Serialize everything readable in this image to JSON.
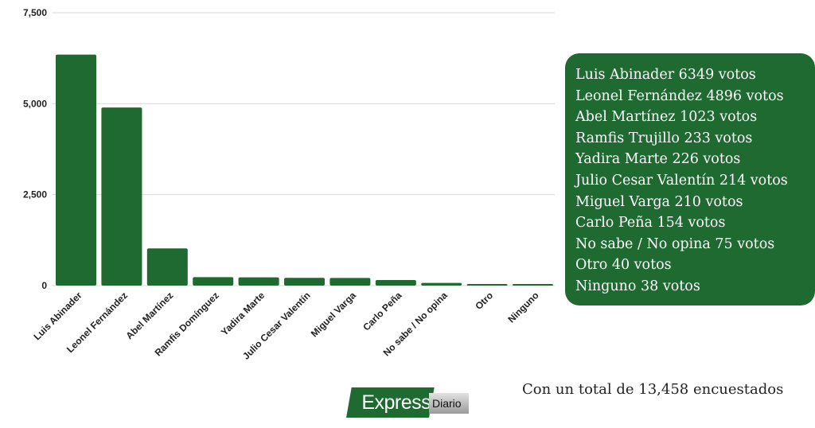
{
  "chart_data": {
    "type": "bar",
    "categories": [
      "Luis Abinader",
      "Leonel Fernández",
      "Abel Martínez",
      "Ramfis Domínguez",
      "Yadira Marte",
      "Julio Cesar Valentín",
      "Miguel Varga",
      "Carlo Peña",
      "No sabe / No opina",
      "Otro",
      "Ninguno"
    ],
    "values": [
      6349,
      4896,
      1023,
      233,
      226,
      214,
      210,
      154,
      75,
      40,
      38
    ],
    "yticks": [
      0,
      2500,
      5000,
      7500
    ],
    "ytick_labels": [
      "0",
      "2,500",
      "5,000",
      "7,500"
    ],
    "ylim": [
      0,
      7500
    ],
    "grid": true,
    "bar_color": "#1e6a31",
    "title": "",
    "xlabel": "",
    "ylabel": ""
  },
  "legend_lines": [
    "Luis Abinader 6349 votos",
    "Leonel Fernández 4896 votos",
    "Abel Martínez 1023 votos",
    "Ramfis Trujillo 233 votos",
    "Yadira Marte 226 votos",
    "Julio Cesar Valentín 214 votos",
    "Miguel Varga 210 votos",
    "Carlo Peña 154 votos",
    "No sabe / No opina 75 votos",
    "Otro 40 votos",
    "Ninguno 38 votos"
  ],
  "legend_bg": "#1e6a31",
  "total_text": "Con un total de 13,458 encuestados",
  "logo": {
    "express": "Express",
    "diario": "Diario",
    "icon": "express-diario-logo"
  }
}
